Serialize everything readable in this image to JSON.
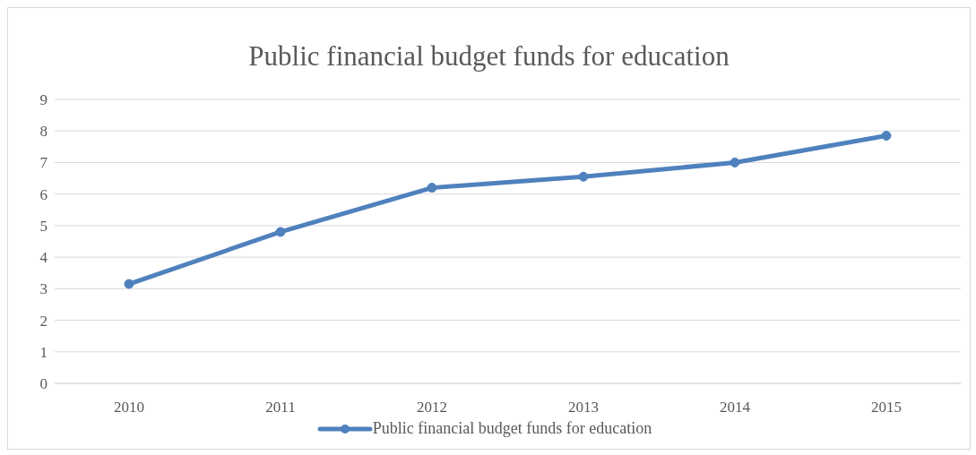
{
  "chart_data": {
    "type": "line",
    "title": "Public financial budget funds for education",
    "categories": [
      "2010",
      "2011",
      "2012",
      "2013",
      "2014",
      "2015"
    ],
    "series": [
      {
        "name": "Public financial budget funds for education",
        "color": "#4f81bd",
        "values": [
          3.15,
          4.8,
          6.2,
          6.55,
          7.0,
          7.85
        ]
      }
    ],
    "ylim": [
      0,
      9
    ],
    "yticks": [
      0,
      1,
      2,
      3,
      4,
      5,
      6,
      7,
      8,
      9
    ],
    "grid": "y",
    "legend": "bottom",
    "marker": "circle",
    "line_style": "solid"
  }
}
